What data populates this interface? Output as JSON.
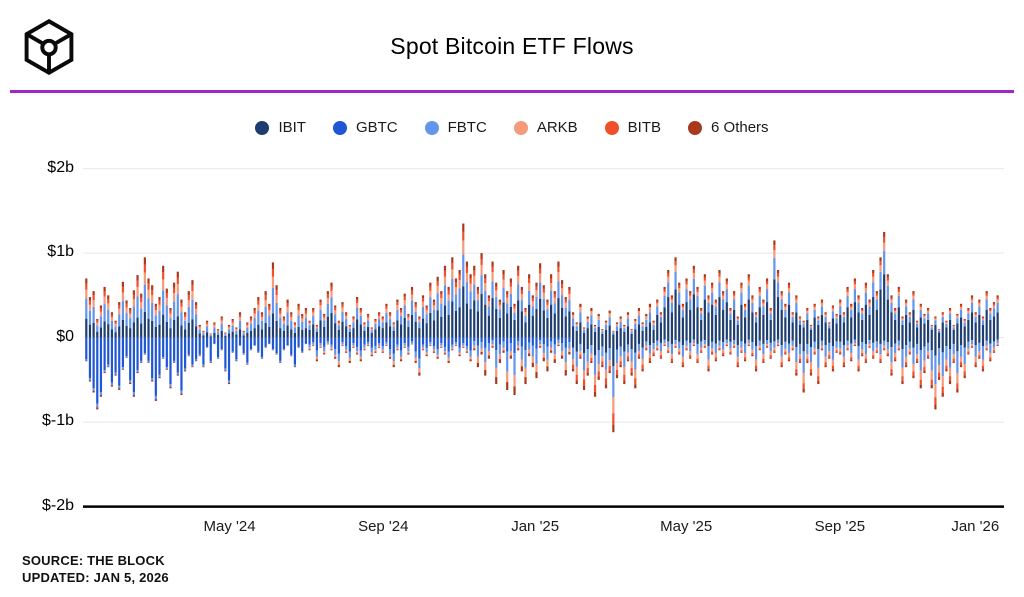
{
  "header": {
    "title": "Spot Bitcoin ETF Flows",
    "logo": "the-block-cube-logo",
    "divider_color": "#9E27C6"
  },
  "footer": {
    "source": "SOURCE: THE BLOCK",
    "updated": "UPDATED: JAN 5, 2026"
  },
  "chart_data": {
    "type": "stacked-bar",
    "title": "Spot Bitcoin ETF Flows",
    "unit": "$b",
    "ylim": [
      -2,
      2
    ],
    "grid": true,
    "legend_position": "top",
    "y_ticks": [
      {
        "label": "$2b",
        "value": 2
      },
      {
        "label": "$1b",
        "value": 1
      },
      {
        "label": "$0",
        "value": 0
      },
      {
        "label": "$-1b",
        "value": -1
      },
      {
        "label": "$-2b",
        "value": -2
      }
    ],
    "x_ticks": [
      {
        "label": "May '24",
        "pos": 0.158
      },
      {
        "label": "Sep '24",
        "pos": 0.326
      },
      {
        "label": "Jan '25",
        "pos": 0.492
      },
      {
        "label": "May '25",
        "pos": 0.657
      },
      {
        "label": "Sep '25",
        "pos": 0.825
      },
      {
        "label": "Jan '26",
        "pos": 0.973
      }
    ],
    "series": [
      {
        "key": "ibit",
        "name": "IBIT",
        "color": "#1C3D6E"
      },
      {
        "key": "gbtc",
        "name": "GBTC",
        "color": "#1E56D6"
      },
      {
        "key": "fbtc",
        "name": "FBTC",
        "color": "#6296EC"
      },
      {
        "key": "arkb",
        "name": "ARKB",
        "color": "#F59B7C"
      },
      {
        "key": "bitb",
        "name": "BITB",
        "color": "#F04F2A"
      },
      {
        "key": "oth",
        "name": "6 Others",
        "color": "#A8391C"
      }
    ],
    "mix_eras": [
      {
        "until": 61,
        "pos": {
          "ibit": 0.32,
          "gbtc": 0,
          "fbtc": 0.34,
          "arkb": 0.15,
          "bitb": 0.1,
          "oth": 0.09
        },
        "neg": {
          "ibit": 0,
          "gbtc": 0.92,
          "fbtc": 0.05,
          "arkb": 0,
          "bitb": 0,
          "oth": 0.03
        }
      },
      {
        "until": 106,
        "pos": {
          "ibit": 0.45,
          "gbtc": 0,
          "fbtc": 0.28,
          "arkb": 0.12,
          "bitb": 0.08,
          "oth": 0.07
        },
        "neg": {
          "ibit": 0,
          "gbtc": 0.55,
          "fbtc": 0.25,
          "arkb": 0.12,
          "bitb": 0,
          "oth": 0.08
        }
      },
      {
        "until": 133,
        "pos": {
          "ibit": 0.52,
          "gbtc": 0,
          "fbtc": 0.22,
          "arkb": 0.12,
          "bitb": 0.07,
          "oth": 0.07
        },
        "neg": {
          "ibit": 0,
          "gbtc": 0.27,
          "fbtc": 0.38,
          "arkb": 0.2,
          "bitb": 0,
          "oth": 0.15
        }
      },
      {
        "until": 156,
        "pos": {
          "ibit": 0.45,
          "gbtc": 0,
          "fbtc": 0.3,
          "arkb": 0.15,
          "bitb": 0,
          "oth": 0.1
        },
        "neg": {
          "ibit": 0.3,
          "gbtc": 0,
          "fbtc": 0.33,
          "arkb": 0.17,
          "bitb": 0.12,
          "oth": 0.08
        }
      },
      {
        "until": 250,
        "pos": {
          "ibit": 0.6,
          "gbtc": 0,
          "fbtc": 0.22,
          "arkb": 0.08,
          "bitb": 0.05,
          "oth": 0.05
        },
        "neg": {
          "ibit": 0.25,
          "gbtc": 0,
          "fbtc": 0.4,
          "arkb": 0.18,
          "bitb": 0.1,
          "oth": 0.07
        }
      }
    ],
    "bars": [
      [
        0.7,
        -0.28
      ],
      [
        0.48,
        -0.52
      ],
      [
        0.55,
        -0.65
      ],
      [
        0.22,
        -0.85
      ],
      [
        0.38,
        -0.7
      ],
      [
        0.6,
        -0.42
      ],
      [
        0.5,
        -0.35
      ],
      [
        0.3,
        -0.58
      ],
      [
        0.2,
        -0.45
      ],
      [
        0.42,
        -0.62
      ],
      [
        0.66,
        -0.38
      ],
      [
        0.44,
        -0.24
      ],
      [
        0.35,
        -0.55
      ],
      [
        0.56,
        -0.7
      ],
      [
        0.74,
        -0.42
      ],
      [
        0.52,
        -0.3
      ],
      [
        0.95,
        -0.2
      ],
      [
        0.7,
        -0.3
      ],
      [
        0.62,
        -0.52
      ],
      [
        0.4,
        -0.75
      ],
      [
        0.48,
        -0.48
      ],
      [
        0.85,
        -0.25
      ],
      [
        0.58,
        -0.38
      ],
      [
        0.35,
        -0.6
      ],
      [
        0.65,
        -0.3
      ],
      [
        0.78,
        -0.45
      ],
      [
        0.45,
        -0.68
      ],
      [
        0.3,
        -0.4
      ],
      [
        0.55,
        -0.22
      ],
      [
        0.68,
        -0.35
      ],
      [
        0.42,
        -0.28
      ],
      [
        0.15,
        -0.22
      ],
      [
        0.08,
        -0.35
      ],
      [
        0.2,
        -0.12
      ],
      [
        0.05,
        -0.3
      ],
      [
        0.18,
        -0.08
      ],
      [
        0.1,
        -0.25
      ],
      [
        0.25,
        -0.15
      ],
      [
        0.06,
        -0.4
      ],
      [
        0.15,
        -0.55
      ],
      [
        0.22,
        -0.18
      ],
      [
        0.12,
        -0.28
      ],
      [
        0.3,
        -0.1
      ],
      [
        0.08,
        -0.2
      ],
      [
        0.18,
        -0.32
      ],
      [
        0.25,
        -0.15
      ],
      [
        0.35,
        -0.1
      ],
      [
        0.48,
        -0.18
      ],
      [
        0.3,
        -0.25
      ],
      [
        0.55,
        -0.12
      ],
      [
        0.4,
        -0.08
      ],
      [
        0.89,
        -0.15
      ],
      [
        0.62,
        -0.2
      ],
      [
        0.35,
        -0.3
      ],
      [
        0.25,
        -0.15
      ],
      [
        0.45,
        -0.1
      ],
      [
        0.3,
        -0.22
      ],
      [
        0.18,
        -0.35
      ],
      [
        0.4,
        -0.12
      ],
      [
        0.28,
        -0.18
      ],
      [
        0.35,
        -0.08
      ],
      [
        0.2,
        -0.15
      ],
      [
        0.35,
        -0.1
      ],
      [
        0.15,
        -0.28
      ],
      [
        0.45,
        -0.12
      ],
      [
        0.28,
        -0.2
      ],
      [
        0.55,
        -0.08
      ],
      [
        0.65,
        -0.15
      ],
      [
        0.38,
        -0.25
      ],
      [
        0.2,
        -0.35
      ],
      [
        0.42,
        -0.1
      ],
      [
        0.3,
        -0.18
      ],
      [
        0.15,
        -0.3
      ],
      [
        0.25,
        -0.12
      ],
      [
        0.48,
        -0.2
      ],
      [
        0.35,
        -0.28
      ],
      [
        0.18,
        -0.15
      ],
      [
        0.28,
        -0.1
      ],
      [
        0.12,
        -0.22
      ],
      [
        0.22,
        -0.18
      ],
      [
        0.3,
        -0.12
      ],
      [
        0.25,
        -0.18
      ],
      [
        0.4,
        -0.1
      ],
      [
        0.3,
        -0.25
      ],
      [
        0.18,
        -0.35
      ],
      [
        0.45,
        -0.15
      ],
      [
        0.35,
        -0.28
      ],
      [
        0.52,
        -0.12
      ],
      [
        0.28,
        -0.2
      ],
      [
        0.6,
        -0.08
      ],
      [
        0.42,
        -0.3
      ],
      [
        0.25,
        -0.45
      ],
      [
        0.5,
        -0.15
      ],
      [
        0.38,
        -0.22
      ],
      [
        0.65,
        -0.1
      ],
      [
        0.45,
        -0.18
      ],
      [
        0.72,
        -0.25
      ],
      [
        0.55,
        -0.12
      ],
      [
        0.85,
        -0.2
      ],
      [
        0.6,
        -0.3
      ],
      [
        0.95,
        -0.15
      ],
      [
        0.7,
        -0.1
      ],
      [
        0.8,
        -0.22
      ],
      [
        1.35,
        -0.12
      ],
      [
        0.9,
        -0.18
      ],
      [
        0.75,
        -0.28
      ],
      [
        0.85,
        -0.15
      ],
      [
        0.6,
        -0.35
      ],
      [
        1.0,
        -0.2
      ],
      [
        0.75,
        -0.45
      ],
      [
        0.5,
        -0.25
      ],
      [
        0.9,
        -0.12
      ],
      [
        0.65,
        -0.55
      ],
      [
        0.45,
        -0.3
      ],
      [
        0.8,
        -0.18
      ],
      [
        0.55,
        -0.62
      ],
      [
        0.7,
        -0.25
      ],
      [
        0.4,
        -0.68
      ],
      [
        0.85,
        -0.15
      ],
      [
        0.6,
        -0.4
      ],
      [
        0.35,
        -0.55
      ],
      [
        0.75,
        -0.22
      ],
      [
        0.5,
        -0.35
      ],
      [
        0.65,
        -0.48
      ],
      [
        0.88,
        -0.12
      ],
      [
        0.62,
        -0.28
      ],
      [
        0.45,
        -0.4
      ],
      [
        0.75,
        -0.18
      ],
      [
        0.55,
        -0.3
      ],
      [
        0.9,
        -0.1
      ],
      [
        0.68,
        -0.25
      ],
      [
        0.48,
        -0.45
      ],
      [
        0.6,
        -0.2
      ],
      [
        0.3,
        -0.4
      ],
      [
        0.18,
        -0.55
      ],
      [
        0.4,
        -0.25
      ],
      [
        0.12,
        -0.62
      ],
      [
        0.25,
        -0.45
      ],
      [
        0.35,
        -0.3
      ],
      [
        0.15,
        -0.7
      ],
      [
        0.28,
        -0.5
      ],
      [
        0.1,
        -0.35
      ],
      [
        0.2,
        -0.6
      ],
      [
        0.32,
        -0.42
      ],
      [
        0.08,
        -1.12
      ],
      [
        0.18,
        -0.48
      ],
      [
        0.25,
        -0.35
      ],
      [
        0.15,
        -0.55
      ],
      [
        0.3,
        -0.28
      ],
      [
        0.1,
        -0.45
      ],
      [
        0.22,
        -0.6
      ],
      [
        0.35,
        -0.25
      ],
      [
        0.18,
        -0.4
      ],
      [
        0.28,
        -0.15
      ],
      [
        0.4,
        -0.3
      ],
      [
        0.2,
        -0.22
      ],
      [
        0.45,
        -0.15
      ],
      [
        0.3,
        -0.25
      ],
      [
        0.6,
        -0.1
      ],
      [
        0.8,
        -0.18
      ],
      [
        0.5,
        -0.3
      ],
      [
        0.95,
        -0.12
      ],
      [
        0.65,
        -0.2
      ],
      [
        0.4,
        -0.35
      ],
      [
        0.7,
        -0.15
      ],
      [
        0.55,
        -0.25
      ],
      [
        0.85,
        -0.1
      ],
      [
        0.6,
        -0.3
      ],
      [
        0.35,
        -0.18
      ],
      [
        0.75,
        -0.12
      ],
      [
        0.5,
        -0.4
      ],
      [
        0.65,
        -0.2
      ],
      [
        0.45,
        -0.28
      ],
      [
        0.8,
        -0.15
      ],
      [
        0.55,
        -0.22
      ],
      [
        0.7,
        -0.1
      ],
      [
        0.35,
        -0.2
      ],
      [
        0.55,
        -0.12
      ],
      [
        0.25,
        -0.35
      ],
      [
        0.65,
        -0.18
      ],
      [
        0.4,
        -0.28
      ],
      [
        0.75,
        -0.1
      ],
      [
        0.5,
        -0.22
      ],
      [
        0.3,
        -0.4
      ],
      [
        0.6,
        -0.15
      ],
      [
        0.45,
        -0.3
      ],
      [
        0.7,
        -0.12
      ],
      [
        0.35,
        -0.25
      ],
      [
        1.15,
        -0.18
      ],
      [
        0.8,
        -0.1
      ],
      [
        0.55,
        -0.35
      ],
      [
        0.4,
        -0.2
      ],
      [
        0.65,
        -0.28
      ],
      [
        0.3,
        -0.15
      ],
      [
        0.5,
        -0.45
      ],
      [
        0.25,
        -0.3
      ],
      [
        0.2,
        -0.65
      ],
      [
        0.35,
        -0.3
      ],
      [
        0.15,
        -0.45
      ],
      [
        0.4,
        -0.2
      ],
      [
        0.25,
        -0.55
      ],
      [
        0.45,
        -0.15
      ],
      [
        0.3,
        -0.35
      ],
      [
        0.18,
        -0.25
      ],
      [
        0.38,
        -0.4
      ],
      [
        0.28,
        -0.18
      ],
      [
        0.45,
        -0.2
      ],
      [
        0.3,
        -0.35
      ],
      [
        0.6,
        -0.15
      ],
      [
        0.4,
        -0.28
      ],
      [
        0.7,
        -0.1
      ],
      [
        0.5,
        -0.4
      ],
      [
        0.35,
        -0.22
      ],
      [
        0.65,
        -0.3
      ],
      [
        0.45,
        -0.12
      ],
      [
        0.8,
        -0.25
      ],
      [
        0.55,
        -0.18
      ],
      [
        0.95,
        -0.3
      ],
      [
        1.25,
        -0.15
      ],
      [
        0.75,
        -0.22
      ],
      [
        0.5,
        -0.45
      ],
      [
        0.35,
        -0.28
      ],
      [
        0.6,
        -0.15
      ],
      [
        0.25,
        -0.55
      ],
      [
        0.45,
        -0.35
      ],
      [
        0.3,
        -0.2
      ],
      [
        0.55,
        -0.48
      ],
      [
        0.2,
        -0.3
      ],
      [
        0.4,
        -0.6
      ],
      [
        0.28,
        -0.42
      ],
      [
        0.35,
        -0.25
      ],
      [
        0.15,
        -0.6
      ],
      [
        0.25,
        -0.85
      ],
      [
        0.1,
        -0.5
      ],
      [
        0.3,
        -0.7
      ],
      [
        0.2,
        -0.4
      ],
      [
        0.35,
        -0.55
      ],
      [
        0.15,
        -0.3
      ],
      [
        0.28,
        -0.65
      ],
      [
        0.4,
        -0.35
      ],
      [
        0.22,
        -0.48
      ],
      [
        0.35,
        -0.2
      ],
      [
        0.5,
        -0.12
      ],
      [
        0.3,
        -0.35
      ],
      [
        0.45,
        -0.25
      ],
      [
        0.25,
        -0.4
      ],
      [
        0.55,
        -0.15
      ],
      [
        0.35,
        -0.28
      ],
      [
        0.42,
        -0.18
      ],
      [
        0.5,
        -0.1
      ]
    ]
  }
}
